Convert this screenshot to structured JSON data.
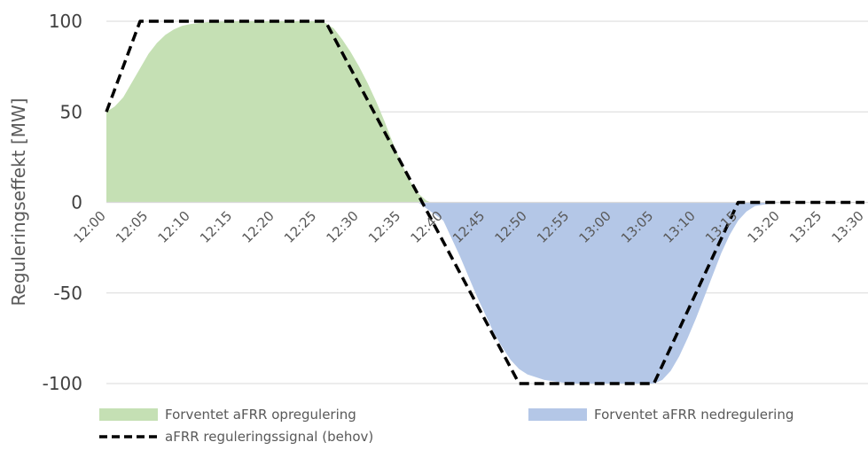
{
  "chart_data": {
    "type": "area",
    "ylabel": "Reguleringseffekt [MW]",
    "xlabel": "",
    "title": "",
    "ylim": [
      -100,
      100
    ],
    "yticks": [
      100,
      50,
      0,
      -50,
      -100
    ],
    "y_tick_labels": [
      "100",
      "50",
      "0",
      "-50",
      "-100"
    ],
    "categories": [
      "12:00",
      "12:05",
      "12:10",
      "12:15",
      "12:20",
      "12:25",
      "12:30",
      "12:35",
      "12:40",
      "12:45",
      "12:50",
      "12:55",
      "13:00",
      "13:05",
      "13:10",
      "13:15",
      "13:20",
      "13:25",
      "13:30"
    ],
    "gridlines": true,
    "legend_position": "bottom",
    "series": [
      {
        "name": "Forventet aFRR opregulering",
        "kind": "area",
        "color": "#c5e0b4",
        "points": [
          [
            "12:00",
            50
          ],
          [
            "12:01",
            53
          ],
          [
            "12:02",
            58
          ],
          [
            "12:03",
            66
          ],
          [
            "12:04",
            74
          ],
          [
            "12:05",
            82
          ],
          [
            "12:06",
            88
          ],
          [
            "12:07",
            92.5
          ],
          [
            "12:08",
            95.5
          ],
          [
            "12:09",
            97.5
          ],
          [
            "12:10",
            98.5
          ],
          [
            "12:12",
            99.5
          ],
          [
            "12:15",
            100
          ],
          [
            "12:25",
            100
          ],
          [
            "12:26",
            99
          ],
          [
            "12:27",
            96
          ],
          [
            "12:28",
            90
          ],
          [
            "12:29",
            83
          ],
          [
            "12:30",
            75
          ],
          [
            "12:31",
            66
          ],
          [
            "12:32",
            56
          ],
          [
            "12:33",
            45
          ],
          [
            "12:34",
            33
          ],
          [
            "12:35",
            22
          ],
          [
            "12:36",
            12
          ],
          [
            "12:37",
            5
          ],
          [
            "12:38",
            1
          ],
          [
            "12:38.5",
            0
          ]
        ]
      },
      {
        "name": "Forventet aFRR nedregulering",
        "kind": "area",
        "color": "#b4c7e7",
        "points": [
          [
            "12:37",
            0
          ],
          [
            "12:40",
            -10
          ],
          [
            "12:42",
            -30
          ],
          [
            "12:44",
            -52
          ],
          [
            "12:45",
            -62
          ],
          [
            "12:46",
            -72
          ],
          [
            "12:47",
            -80
          ],
          [
            "12:48",
            -87
          ],
          [
            "12:49",
            -92
          ],
          [
            "12:50",
            -95
          ],
          [
            "12:52",
            -98
          ],
          [
            "12:55",
            -100
          ],
          [
            "13:05",
            -100
          ],
          [
            "13:06",
            -98
          ],
          [
            "13:07",
            -93
          ],
          [
            "13:08",
            -85
          ],
          [
            "13:09",
            -75
          ],
          [
            "13:10",
            -64
          ],
          [
            "13:11",
            -52
          ],
          [
            "13:12",
            -40
          ],
          [
            "13:13",
            -28
          ],
          [
            "13:14",
            -18
          ],
          [
            "13:15",
            -10
          ],
          [
            "13:16",
            -5
          ],
          [
            "13:17",
            -2
          ],
          [
            "13:19",
            -0.5
          ],
          [
            "13:21",
            0
          ]
        ]
      },
      {
        "name": "aFRR reguleringssignal (behov)",
        "kind": "dashed-line",
        "color": "#000000",
        "points": [
          [
            "12:00",
            50
          ],
          [
            "12:04",
            100
          ],
          [
            "12:26",
            100
          ],
          [
            "12:49",
            -100
          ],
          [
            "13:05",
            -100
          ],
          [
            "13:15",
            0
          ],
          [
            "13:30",
            0
          ]
        ]
      }
    ]
  }
}
